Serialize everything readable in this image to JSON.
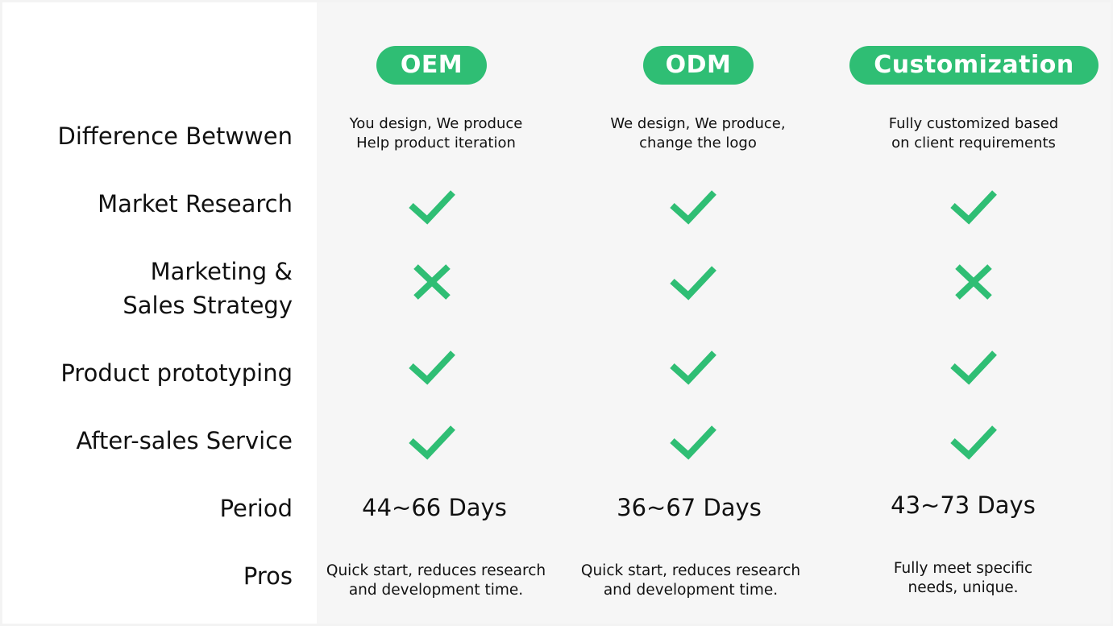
{
  "accent_color": "#2fbe74",
  "columns": [
    {
      "label": "OEM",
      "description_lines": [
        "You design, We produce",
        "Help product iteration"
      ],
      "period": "44~66 Days",
      "pros_lines": [
        "Quick start, reduces research",
        "and development time."
      ]
    },
    {
      "label": "ODM",
      "description_lines": [
        "We design, We produce,",
        "change the logo"
      ],
      "period": "36~67 Days",
      "pros_lines": [
        "Quick start, reduces research",
        "and development time."
      ]
    },
    {
      "label": "Customization",
      "description_lines": [
        "Fully customized based",
        "on client requirements"
      ],
      "period": "43~73 Days",
      "pros_lines": [
        "Fully meet specific",
        "needs, unique."
      ]
    }
  ],
  "rows": {
    "difference": "Difference Betwwen",
    "market_research": "Market Research",
    "marketing_line1": "Marketing &",
    "marketing_line2": "Sales Strategy",
    "prototyping": "Product prototyping",
    "after_sales": "After-sales Service",
    "period": "Period",
    "pros": "Pros"
  },
  "features": [
    {
      "row": "market_research",
      "values": [
        "check-icon",
        "check-icon",
        "check-icon"
      ]
    },
    {
      "row": "marketing_sales",
      "values": [
        "cross-icon",
        "check-icon",
        "cross-icon"
      ]
    },
    {
      "row": "prototyping",
      "values": [
        "check-icon",
        "check-icon",
        "check-icon"
      ]
    },
    {
      "row": "after_sales",
      "values": [
        "check-icon",
        "check-icon",
        "check-icon"
      ]
    }
  ]
}
